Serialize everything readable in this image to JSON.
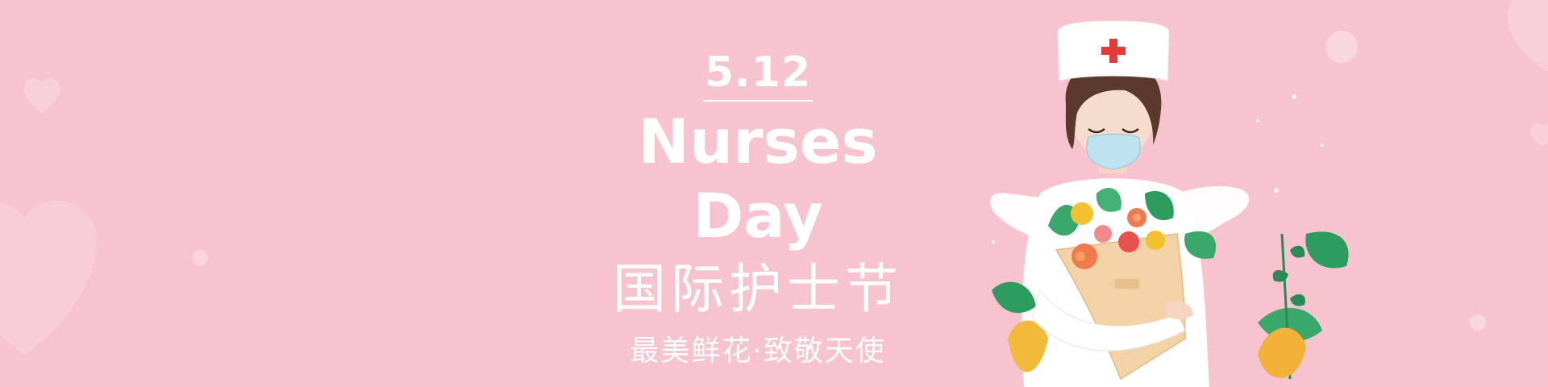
{
  "banner": {
    "date": "5.12",
    "title_en": "Nurses Day",
    "title_zh": "国际护士节",
    "slogan": "最美鲜花·致敬天使"
  },
  "colors": {
    "background": "#f6c3ce",
    "text": "#ffffff",
    "cross": "#e63a3a",
    "mask": "#bfe3ee"
  },
  "icons": [
    "heart-icon",
    "nurse-illustration",
    "bouquet-illustration",
    "angel-wings-illustration"
  ]
}
